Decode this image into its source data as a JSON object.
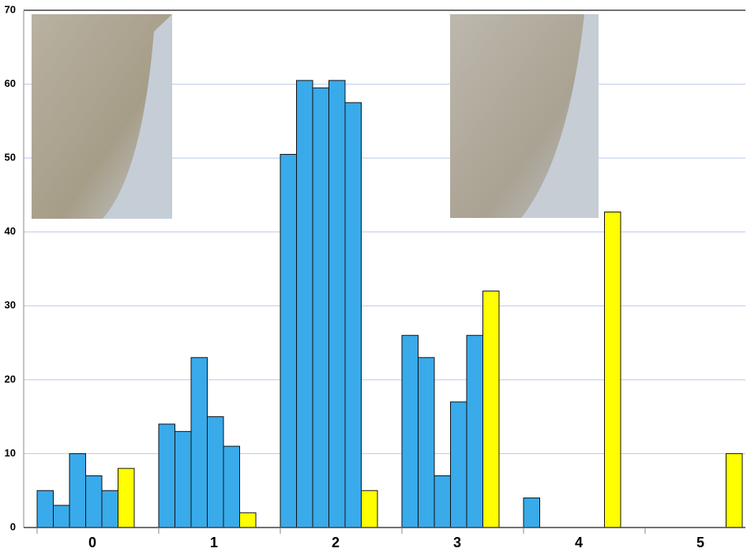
{
  "chart_data": {
    "type": "bar",
    "categories": [
      "0",
      "1",
      "2",
      "3",
      "4",
      "5"
    ],
    "series": [
      {
        "color": "#39aaea",
        "values": [
          5,
          14,
          50.5,
          26,
          4,
          0
        ]
      },
      {
        "color": "#39aaea",
        "values": [
          3,
          13,
          60.5,
          23,
          0,
          0
        ]
      },
      {
        "color": "#39aaea",
        "values": [
          10,
          23,
          59.5,
          7,
          0,
          0
        ]
      },
      {
        "color": "#39aaea",
        "values": [
          7,
          15,
          60.5,
          17,
          0,
          0
        ]
      },
      {
        "color": "#39aaea",
        "values": [
          5,
          11,
          57.5,
          26,
          0,
          0
        ]
      },
      {
        "color": "#ffff00",
        "values": [
          8,
          2,
          5,
          32,
          42.7,
          10
        ]
      }
    ],
    "ylim": [
      0,
      70
    ],
    "yticks": [
      0,
      10,
      20,
      30,
      40,
      50,
      60,
      70
    ],
    "grid": true
  }
}
